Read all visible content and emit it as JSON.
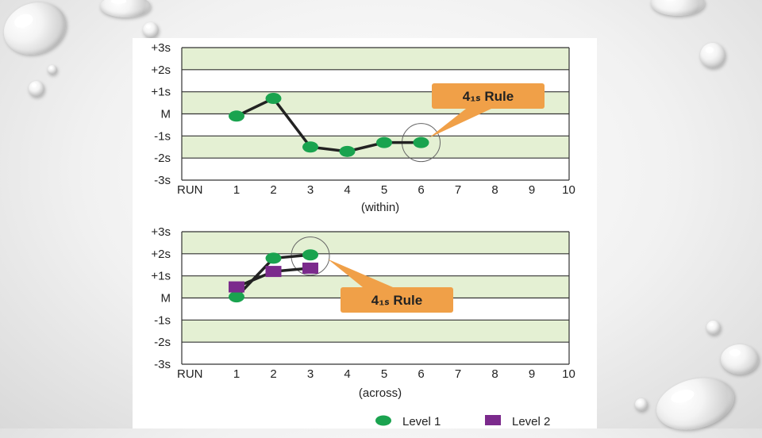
{
  "chart_data": [
    {
      "type": "line",
      "y_tick_labels": [
        "+3s",
        "+2s",
        "+1s",
        "M",
        "-1s",
        "-2s",
        "-3s"
      ],
      "y_values": [
        3,
        2,
        1,
        0,
        -1,
        -2,
        -3
      ],
      "x_axis_label": "RUN",
      "x_ticks": [
        1,
        2,
        3,
        4,
        5,
        6,
        7,
        8,
        9,
        10
      ],
      "xlabel": "(within)",
      "ylim": [
        -3,
        3
      ],
      "series": [
        {
          "name": "Level 1",
          "x": [
            1,
            2,
            3,
            4,
            5,
            6
          ],
          "y": [
            -0.1,
            0.7,
            -1.5,
            -1.7,
            -1.3,
            -1.3
          ]
        }
      ],
      "annotation": {
        "text": "4₁ₛ Rule",
        "target_x": 6,
        "target_y": -1.3
      }
    },
    {
      "type": "line",
      "y_tick_labels": [
        "+3s",
        "+2s",
        "+1s",
        "M",
        "-1s",
        "-2s",
        "-3s"
      ],
      "y_values": [
        3,
        2,
        1,
        0,
        -1,
        -2,
        -3
      ],
      "x_axis_label": "RUN",
      "x_ticks": [
        1,
        2,
        3,
        4,
        5,
        6,
        7,
        8,
        9,
        10
      ],
      "xlabel": "(across)",
      "ylim": [
        -3,
        3
      ],
      "series": [
        {
          "name": "Level 1",
          "x": [
            1,
            2,
            3
          ],
          "y": [
            0.05,
            1.8,
            1.95
          ]
        },
        {
          "name": "Level 2",
          "x": [
            1,
            2,
            3
          ],
          "y": [
            0.5,
            1.2,
            1.35
          ]
        }
      ],
      "annotation": {
        "text": "4₁ₛ Rule",
        "target_x": 3,
        "target_y": 1.9
      }
    }
  ],
  "legend": {
    "position": "bottom-right",
    "items": [
      {
        "label": "Level 1",
        "marker": "circle",
        "color": "#1aa34f"
      },
      {
        "label": "Level 2",
        "marker": "square",
        "color": "#7b2a8c"
      }
    ]
  },
  "colors": {
    "band_green": "#e4f0d3",
    "band_white": "#ffffff",
    "line": "#222222",
    "level1": "#1aa34f",
    "level2": "#7b2a8c",
    "callout": "#f0a048"
  }
}
